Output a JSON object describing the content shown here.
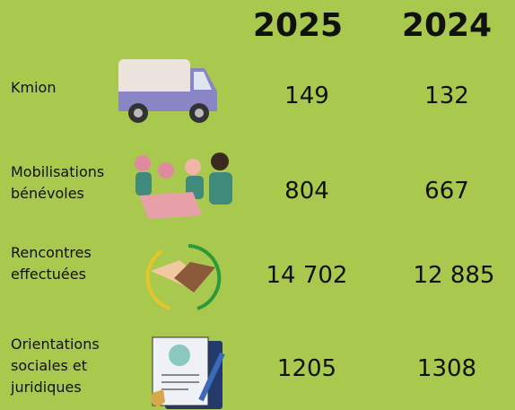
{
  "table": {
    "header": [
      "2025",
      "2024"
    ],
    "rows": [
      {
        "label": "Kmion",
        "values": [
          "149",
          "132"
        ]
      },
      {
        "label": "Mobilisations bénévoles",
        "values": [
          "804",
          "667"
        ]
      },
      {
        "label": "Rencontres effectuées",
        "values": [
          "14 702",
          "12 885"
        ]
      },
      {
        "label": "Orientations sociales et juridiques",
        "values": [
          "1205",
          "1308"
        ]
      }
    ]
  }
}
